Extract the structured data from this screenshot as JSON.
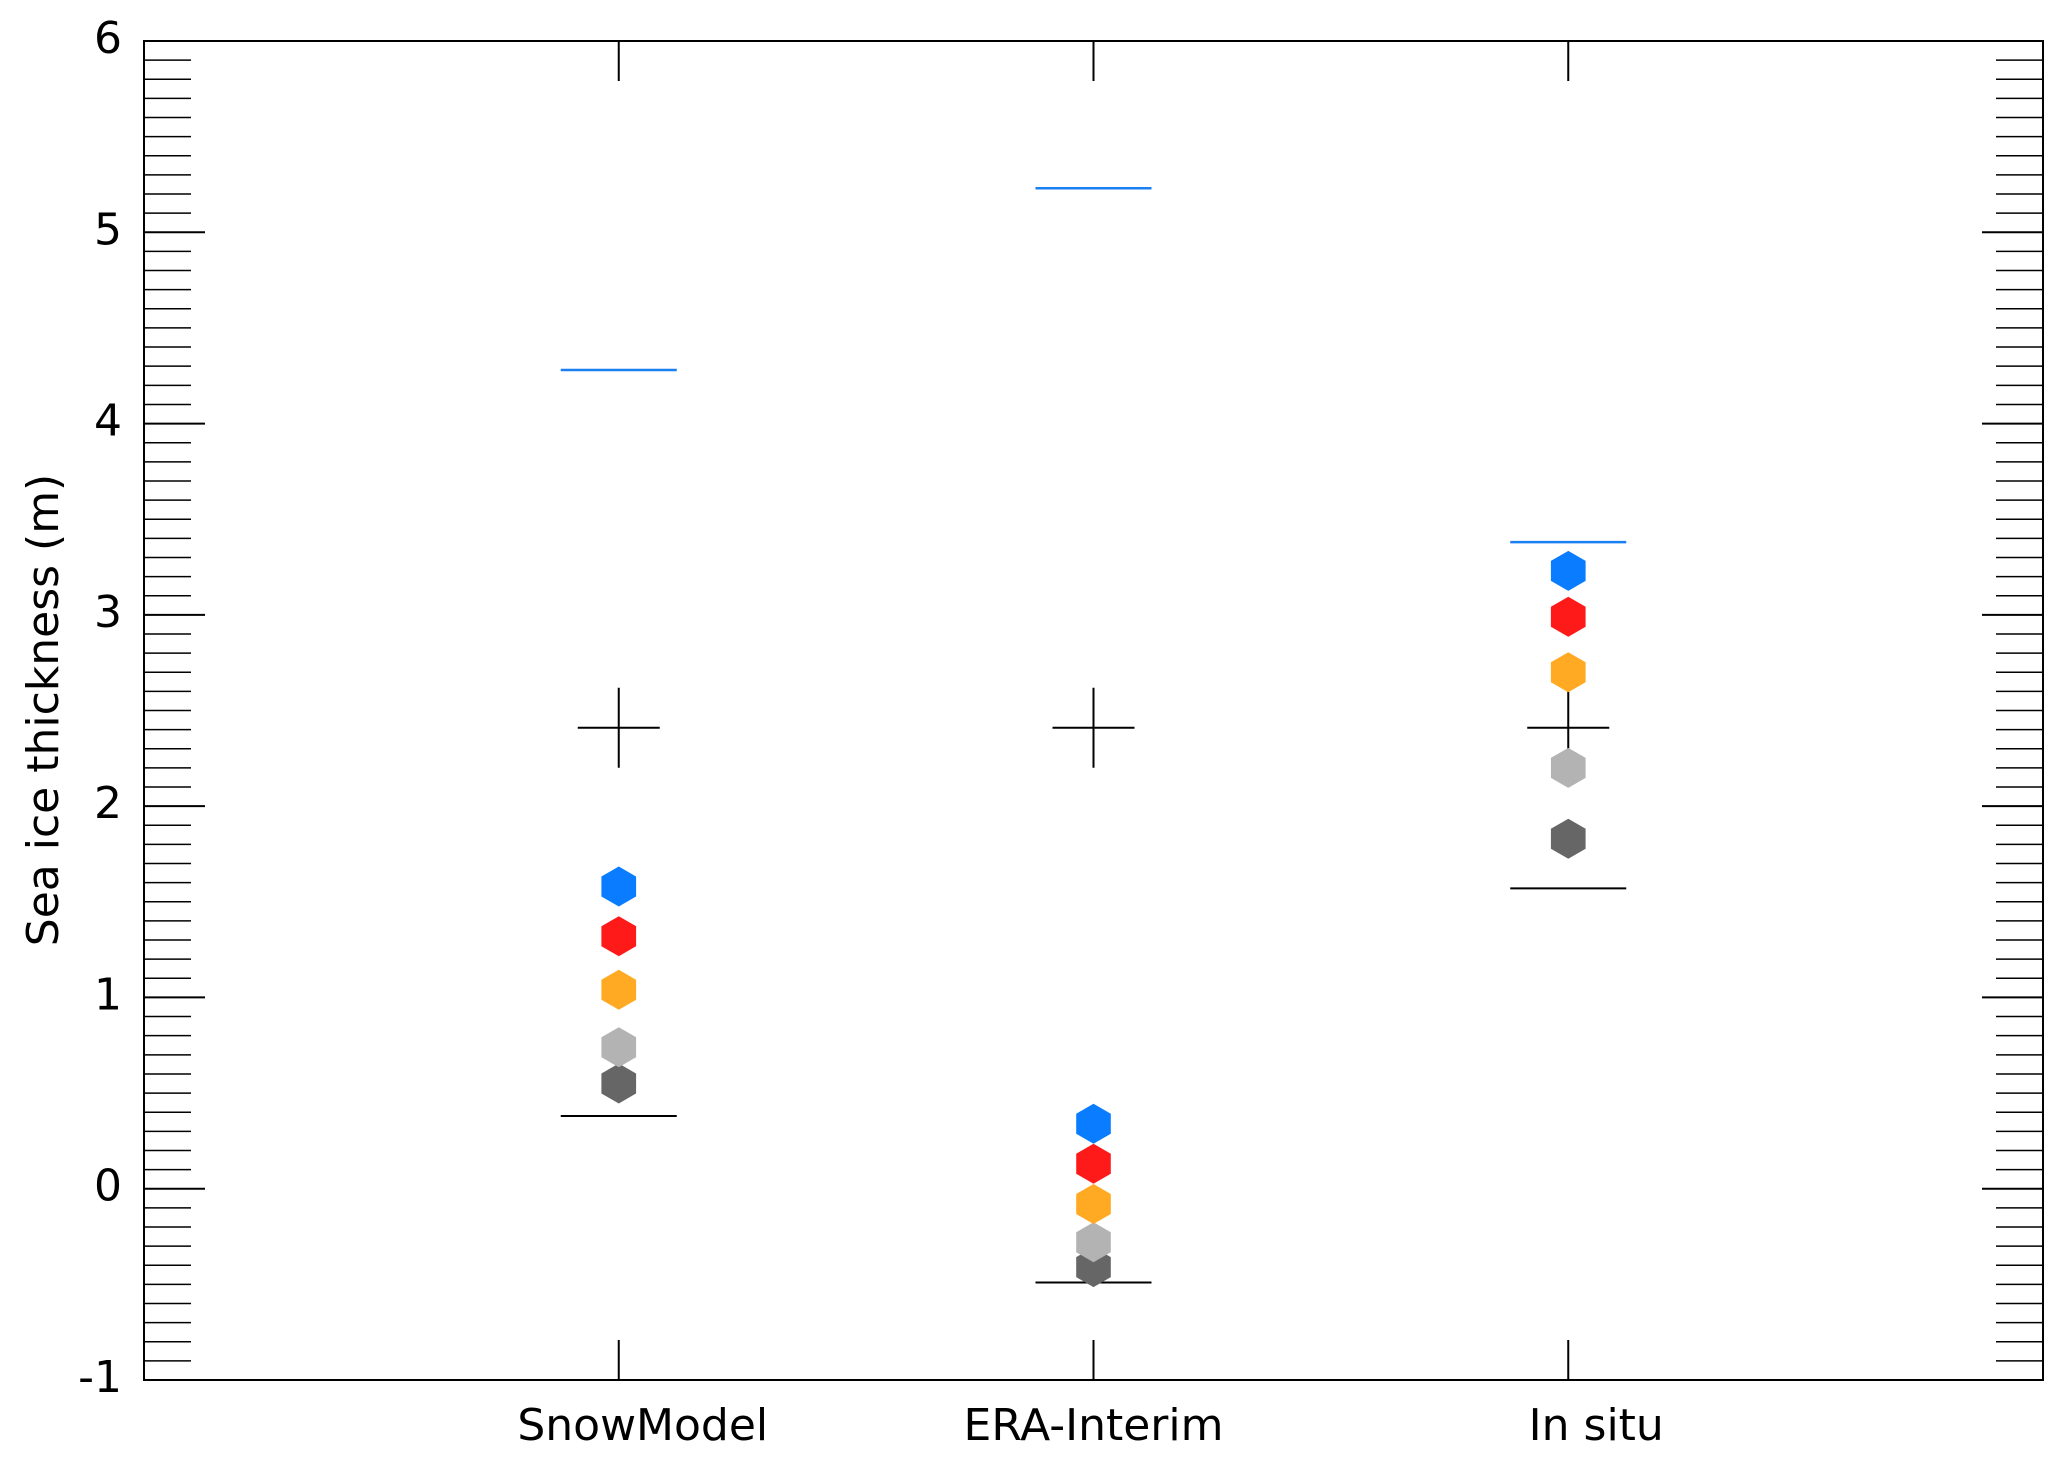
{
  "chart_data": {
    "type": "scatter",
    "y_label": "Sea ice thickness (m)",
    "categories": [
      "SnowModel",
      "ERA-Interim",
      "In situ"
    ],
    "ylim": [
      -1,
      6
    ],
    "yticks": [
      -1,
      0,
      1,
      2,
      3,
      4,
      5,
      6
    ],
    "series": [
      {
        "color": "#0a7cff",
        "values": [
          1.58,
          0.34,
          3.23
        ]
      },
      {
        "color": "#ff1a1a",
        "values": [
          1.32,
          0.13,
          2.99
        ]
      },
      {
        "color": "#ffaa22",
        "values": [
          1.04,
          -0.08,
          2.7
        ]
      },
      {
        "color": "#b3b3b3",
        "values": [
          0.74,
          -0.28,
          2.2
        ]
      },
      {
        "color": "#666666",
        "values": [
          0.55,
          -0.41,
          1.83
        ]
      }
    ],
    "upper_line": {
      "color": "#1a7ff0",
      "values": [
        4.28,
        5.23,
        3.38
      ]
    },
    "lower_line": {
      "color": "#000000",
      "values": [
        0.38,
        -0.49,
        1.57
      ]
    },
    "cross": {
      "color": "#000000",
      "values": [
        2.41,
        2.41,
        2.41
      ]
    }
  }
}
